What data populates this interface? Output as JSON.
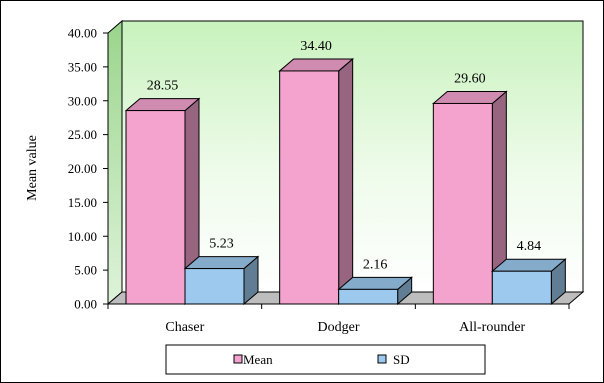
{
  "chart_data": {
    "type": "bar",
    "categories": [
      "Chaser",
      "Dodger",
      "All-rounder"
    ],
    "series": [
      {
        "name": "Mean",
        "values": [
          28.55,
          34.4,
          29.6
        ],
        "labels": [
          "28.55",
          "34.40",
          "29.60"
        ],
        "color": "#f4a3cf"
      },
      {
        "name": "SD",
        "values": [
          5.23,
          2.16,
          4.84
        ],
        "labels": [
          "5.23",
          "2.16",
          "4.84"
        ],
        "color": "#9dc9ef"
      }
    ],
    "ylabel": "Mean value",
    "ylim": [
      0,
      40
    ],
    "yticks": [
      "0.00",
      "5.00",
      "10.00",
      "15.00",
      "20.00",
      "25.00",
      "30.00",
      "35.00",
      "40.00"
    ],
    "ytick_values": [
      0,
      5,
      10,
      15,
      20,
      25,
      30,
      35,
      40
    ],
    "legend_position": "bottom",
    "three_d": true,
    "background_gradient": [
      "#c8f2bd",
      "#ffffff"
    ]
  }
}
